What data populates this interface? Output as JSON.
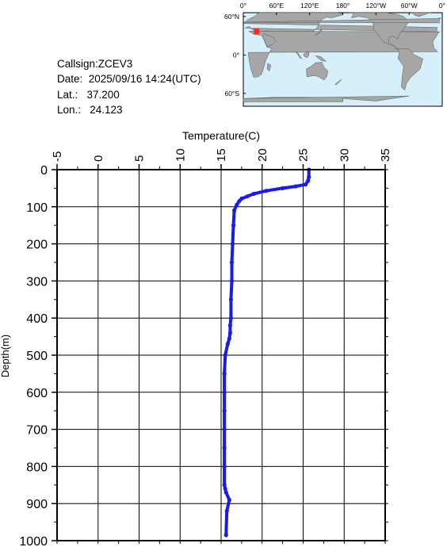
{
  "station": {
    "callsign_line": "Callsign:ZCEV3",
    "date_line": "Date:  2025/09/16 14:24(UTC)",
    "lat_line": "Lat.:   37.200",
    "lon_line": "Lon.:   24.123"
  },
  "map": {
    "top_labels": [
      "0°",
      "60°E",
      "120°E",
      "180°",
      "120°W",
      "60°W",
      "0°"
    ],
    "lat_labels": [
      "60°N",
      "0°",
      "60°S"
    ],
    "ocean_color": "#d6f0fb",
    "land_color": "#a6a6a6",
    "marker_color": "#ff2a2a",
    "marker": {
      "lon": 24.123,
      "lat": 37.2
    }
  },
  "chart_data": {
    "type": "line",
    "title": "",
    "xlabel": "Temperature(C)",
    "ylabel": "Depth(m)",
    "xlim": [
      -5,
      35
    ],
    "ylim": [
      1000,
      0
    ],
    "x_axis_position": "top",
    "x_ticks": [
      "-5",
      "0",
      "5",
      "10",
      "15",
      "20",
      "25",
      "30",
      "35"
    ],
    "y_ticks": [
      "0",
      "100",
      "200",
      "300",
      "400",
      "500",
      "600",
      "700",
      "800",
      "900",
      "1000"
    ],
    "grid": true,
    "series_color": "#1a1aee",
    "series": [
      {
        "name": "",
        "x": [
          25.7,
          25.7,
          25.6,
          25.3,
          24.1,
          22.5,
          20.5,
          19.0,
          18.2,
          17.5,
          17.2,
          16.9,
          16.6,
          16.5,
          16.4,
          16.3,
          16.3,
          16.2,
          16.2,
          16.1,
          16.1,
          16.0,
          15.8,
          15.5,
          15.4,
          15.4,
          15.4,
          15.4,
          15.4,
          15.4,
          15.4,
          15.5,
          15.6,
          16.0,
          15.7,
          15.6
        ],
        "y": [
          0,
          20,
          30,
          40,
          45,
          50,
          57,
          65,
          72,
          78,
          85,
          95,
          110,
          150,
          200,
          250,
          300,
          350,
          400,
          420,
          440,
          455,
          470,
          500,
          550,
          600,
          650,
          700,
          750,
          800,
          850,
          860,
          870,
          890,
          920,
          985
        ]
      }
    ]
  }
}
